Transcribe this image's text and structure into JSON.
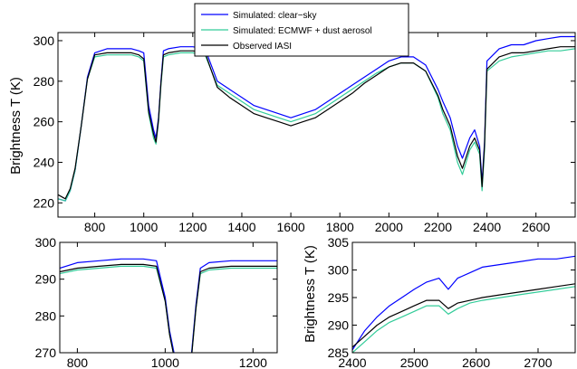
{
  "chart_data": [
    {
      "id": "top",
      "type": "line",
      "title": "",
      "xlabel": "",
      "ylabel": "Brightness T (K)",
      "xlim": [
        650,
        2760
      ],
      "ylim": [
        213,
        304
      ],
      "xticks": [
        800,
        1000,
        1200,
        1400,
        1600,
        1800,
        2000,
        2200,
        2400,
        2600
      ],
      "yticks": [
        220,
        240,
        260,
        280,
        300
      ],
      "grid": false,
      "legend": {
        "placement": "top-center",
        "entries": [
          {
            "name": "Simulated: clear−sky",
            "color": "#0000ff"
          },
          {
            "name": "Simulated: ECMWF + dust aerosol",
            "color": "#33cc99"
          },
          {
            "name": "Observed IASI",
            "color": "#000000"
          }
        ]
      },
      "series": [
        {
          "name": "Simulated: clear−sky",
          "color": "#0000ff",
          "x": [
            650,
            680,
            700,
            720,
            745,
            770,
            800,
            850,
            900,
            950,
            980,
            1000,
            1020,
            1040,
            1050,
            1060,
            1070,
            1080,
            1100,
            1150,
            1200,
            1250,
            1300,
            1350,
            1400,
            1450,
            1500,
            1550,
            1600,
            1650,
            1700,
            1750,
            1800,
            1850,
            1900,
            1950,
            2000,
            2050,
            2100,
            2150,
            2200,
            2220,
            2250,
            2280,
            2300,
            2330,
            2350,
            2370,
            2380,
            2390,
            2400,
            2450,
            2500,
            2550,
            2600,
            2650,
            2700,
            2760
          ],
          "y": [
            222,
            221,
            226,
            236,
            258,
            282,
            294,
            296,
            296,
            296,
            295,
            294,
            268,
            256,
            252,
            262,
            280,
            295,
            296,
            297,
            297,
            296,
            280,
            276,
            272,
            268,
            266,
            264,
            262,
            264,
            266,
            270,
            274,
            278,
            282,
            286,
            290,
            292,
            292,
            288,
            276,
            270,
            262,
            248,
            242,
            252,
            256,
            248,
            230,
            250,
            290,
            296,
            298,
            298,
            300,
            301,
            302,
            302
          ]
        },
        {
          "name": "Simulated: ECMWF + dust aerosol",
          "color": "#33cc99",
          "x": [
            650,
            680,
            700,
            720,
            745,
            770,
            800,
            850,
            900,
            950,
            980,
            1000,
            1020,
            1040,
            1050,
            1060,
            1070,
            1080,
            1100,
            1150,
            1200,
            1250,
            1300,
            1350,
            1400,
            1450,
            1500,
            1550,
            1600,
            1650,
            1700,
            1750,
            1800,
            1850,
            1900,
            1950,
            2000,
            2050,
            2100,
            2150,
            2200,
            2220,
            2250,
            2280,
            2300,
            2330,
            2350,
            2370,
            2380,
            2390,
            2400,
            2450,
            2500,
            2550,
            2600,
            2650,
            2700,
            2760
          ],
          "y": [
            222,
            221,
            226,
            236,
            258,
            281,
            292,
            293,
            293,
            293,
            292,
            290,
            264,
            252,
            249,
            260,
            278,
            292,
            293,
            294,
            294,
            293,
            278,
            274,
            270,
            266,
            264,
            262,
            260,
            262,
            264,
            268,
            272,
            276,
            280,
            284,
            287,
            289,
            289,
            285,
            272,
            264,
            256,
            240,
            234,
            246,
            250,
            244,
            226,
            246,
            285,
            290,
            292,
            293,
            294,
            295,
            295,
            296
          ]
        },
        {
          "name": "Observed IASI",
          "color": "#000000",
          "x": [
            650,
            680,
            700,
            720,
            745,
            770,
            800,
            850,
            900,
            950,
            980,
            1000,
            1020,
            1040,
            1050,
            1060,
            1070,
            1080,
            1100,
            1150,
            1200,
            1250,
            1300,
            1350,
            1400,
            1450,
            1500,
            1550,
            1600,
            1650,
            1700,
            1750,
            1800,
            1850,
            1900,
            1950,
            2000,
            2050,
            2100,
            2150,
            2200,
            2220,
            2250,
            2280,
            2300,
            2330,
            2350,
            2370,
            2380,
            2390,
            2400,
            2450,
            2500,
            2550,
            2600,
            2650,
            2700,
            2760
          ],
          "y": [
            224,
            222,
            227,
            237,
            258,
            281,
            293,
            294,
            294,
            294,
            293,
            291,
            265,
            254,
            250,
            261,
            279,
            293,
            294,
            295,
            295,
            294,
            277,
            272,
            268,
            264,
            262,
            260,
            258,
            260,
            262,
            266,
            270,
            274,
            279,
            283,
            287,
            289,
            289,
            285,
            273,
            266,
            258,
            243,
            237,
            248,
            252,
            246,
            228,
            248,
            286,
            292,
            294,
            294,
            295,
            296,
            297,
            297
          ]
        }
      ]
    },
    {
      "id": "bottom-left",
      "type": "line",
      "title": "",
      "xlabel": "",
      "ylabel": "",
      "xlim": [
        760,
        1255
      ],
      "ylim": [
        270,
        300
      ],
      "xticks": [
        800,
        1000,
        1200
      ],
      "yticks": [
        270,
        280,
        290,
        300
      ],
      "grid": false,
      "series": [
        {
          "name": "Simulated: clear−sky",
          "color": "#0000ff",
          "x": [
            760,
            800,
            850,
            900,
            950,
            980,
            1000,
            1010,
            1020,
            1040,
            1050,
            1060,
            1070,
            1080,
            1100,
            1150,
            1200,
            1255
          ],
          "y": [
            293,
            294.5,
            295,
            295.5,
            295.5,
            295,
            285,
            276,
            270,
            262,
            262,
            270,
            283,
            293,
            294.5,
            295,
            295,
            295
          ]
        },
        {
          "name": "Simulated: ECMWF + dust aerosol",
          "color": "#33cc99",
          "x": [
            760,
            800,
            850,
            900,
            950,
            980,
            1000,
            1010,
            1020,
            1040,
            1050,
            1060,
            1070,
            1080,
            1100,
            1150,
            1200,
            1255
          ],
          "y": [
            291.5,
            292.5,
            293,
            293.5,
            293.5,
            293,
            284,
            275,
            269,
            261,
            261,
            269,
            282,
            291.5,
            292.5,
            293,
            293,
            293
          ]
        },
        {
          "name": "Observed IASI",
          "color": "#000000",
          "x": [
            760,
            800,
            850,
            900,
            950,
            980,
            1000,
            1010,
            1020,
            1040,
            1050,
            1060,
            1070,
            1080,
            1100,
            1150,
            1200,
            1255
          ],
          "y": [
            292,
            293,
            293.5,
            294,
            294,
            293.5,
            284,
            275,
            269,
            261,
            261,
            269,
            282,
            292,
            293,
            293.5,
            293.5,
            293.5
          ]
        }
      ]
    },
    {
      "id": "bottom-right",
      "type": "line",
      "title": "",
      "xlabel": "",
      "ylabel": "Brightness T (K)",
      "xlim": [
        2400,
        2760
      ],
      "ylim": [
        285,
        305
      ],
      "xticks": [
        2400,
        2500,
        2600,
        2700
      ],
      "yticks": [
        285,
        290,
        295,
        300,
        305
      ],
      "grid": false,
      "series": [
        {
          "name": "Simulated: clear−sky",
          "color": "#0000ff",
          "x": [
            2400,
            2420,
            2440,
            2460,
            2480,
            2500,
            2520,
            2540,
            2555,
            2570,
            2590,
            2610,
            2640,
            2670,
            2700,
            2730,
            2760
          ],
          "y": [
            285.5,
            289,
            291.5,
            293.5,
            295,
            296.5,
            297.8,
            298.5,
            296.5,
            298.5,
            299.5,
            300.5,
            301,
            301.5,
            302,
            302,
            302.5
          ]
        },
        {
          "name": "Simulated: ECMWF + dust aerosol",
          "color": "#33cc99",
          "x": [
            2400,
            2420,
            2440,
            2460,
            2480,
            2500,
            2520,
            2540,
            2555,
            2570,
            2590,
            2610,
            2640,
            2670,
            2700,
            2730,
            2760
          ],
          "y": [
            285,
            287,
            289,
            290.5,
            291.5,
            292.5,
            293.5,
            293.5,
            292,
            293,
            294,
            294.5,
            295,
            295.5,
            296,
            296.5,
            297
          ]
        },
        {
          "name": "Observed IASI",
          "color": "#000000",
          "x": [
            2400,
            2420,
            2440,
            2460,
            2480,
            2500,
            2520,
            2540,
            2555,
            2570,
            2590,
            2610,
            2640,
            2670,
            2700,
            2730,
            2760
          ],
          "y": [
            286,
            288,
            290,
            291.5,
            292.5,
            293.5,
            294.5,
            294.5,
            293,
            294,
            294.5,
            295,
            295.5,
            296,
            296.5,
            297,
            297.5
          ]
        }
      ]
    }
  ]
}
